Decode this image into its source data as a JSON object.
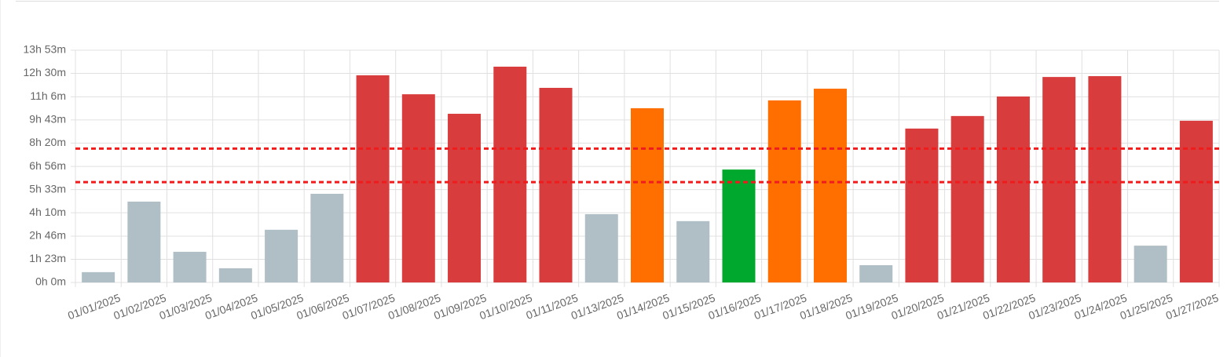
{
  "chart_data": {
    "type": "bar",
    "categories": [
      "01/01/2025",
      "01/02/2025",
      "01/03/2025",
      "01/04/2025",
      "01/05/2025",
      "01/06/2025",
      "01/07/2025",
      "01/08/2025",
      "01/09/2025",
      "01/10/2025",
      "01/11/2025",
      "01/13/2025",
      "01/14/2025",
      "01/15/2025",
      "01/16/2025",
      "01/17/2025",
      "01/18/2025",
      "01/19/2025",
      "01/20/2025",
      "01/21/2025",
      "01/22/2025",
      "01/23/2025",
      "01/24/2025",
      "01/25/2025",
      "01/27/2025"
    ],
    "values": [
      37,
      290,
      110,
      51,
      189,
      318,
      743,
      675,
      605,
      774,
      698,
      245,
      625,
      220,
      405,
      653,
      695,
      62,
      552,
      597,
      667,
      737,
      740,
      132,
      580
    ],
    "colors": [
      "#b0bec5",
      "#b0bec5",
      "#b0bec5",
      "#b0bec5",
      "#b0bec5",
      "#b0bec5",
      "#d93c3c",
      "#d93c3c",
      "#d93c3c",
      "#d93c3c",
      "#d93c3c",
      "#b0bec5",
      "#ff6f00",
      "#b0bec5",
      "#00a82d",
      "#ff6f00",
      "#ff6f00",
      "#b0bec5",
      "#d93c3c",
      "#d93c3c",
      "#d93c3c",
      "#d93c3c",
      "#d93c3c",
      "#b0bec5",
      "#d93c3c"
    ],
    "ylim": [
      0,
      833
    ],
    "yticks": [
      {
        "value": 0,
        "label": "0h 0m"
      },
      {
        "value": 83,
        "label": "1h 23m"
      },
      {
        "value": 166,
        "label": "2h 46m"
      },
      {
        "value": 250,
        "label": "4h 10m"
      },
      {
        "value": 333,
        "label": "5h 33m"
      },
      {
        "value": 416,
        "label": "6h 56m"
      },
      {
        "value": 500,
        "label": "8h 20m"
      },
      {
        "value": 583,
        "label": "9h 43m"
      },
      {
        "value": 666,
        "label": "11h 6m"
      },
      {
        "value": 750,
        "label": "12h 30m"
      },
      {
        "value": 833,
        "label": "13h 53m"
      }
    ],
    "grid": true,
    "reference_lines": [
      {
        "value": 480,
        "color": "#ee1c1c"
      },
      {
        "value": 360,
        "color": "#ee1c1c"
      }
    ]
  }
}
